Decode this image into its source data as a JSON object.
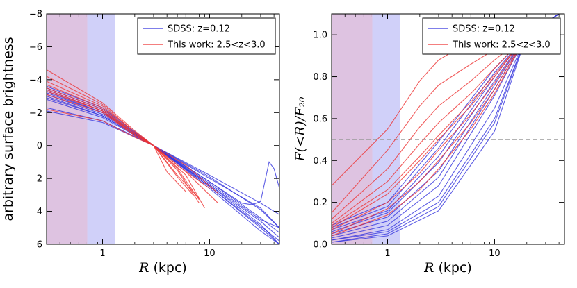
{
  "colors": {
    "sdss": "#3333dd",
    "this_work": "#ee3333",
    "red_band": "#d8b8dc",
    "blue_band": "#c8c8f8",
    "ref_line": "#9a9a9a"
  },
  "chart_data": [
    {
      "type": "line",
      "id": "left",
      "title": "",
      "xlabel_var": "R",
      "xlabel_unit": " (kpc)",
      "ylabel": "arbitrary surface brightness",
      "xscale": "log",
      "xlim": [
        0.3,
        45
      ],
      "ylim": [
        6,
        -8
      ],
      "x_ticks": [
        1,
        10
      ],
      "x_tick_labels": [
        "1",
        "10"
      ],
      "y_ticks": [
        -8,
        -6,
        -4,
        -2,
        0,
        2,
        4,
        6
      ],
      "y_tick_labels": [
        "−8",
        "−6",
        "−4",
        "−2",
        "0",
        "2",
        "4",
        "6"
      ],
      "shaded_regions": [
        {
          "name": "red-band",
          "x": [
            0.3,
            0.72
          ],
          "color": "red_band"
        },
        {
          "name": "blue-band",
          "x": [
            0.72,
            1.3
          ],
          "color": "blue_band"
        }
      ],
      "legend": {
        "position": "top-right",
        "entries": [
          {
            "label": "SDSS: z=0.12",
            "color": "sdss"
          },
          {
            "label": "This work: 2.5<z<3.0",
            "color": "this_work"
          }
        ]
      },
      "series": [
        {
          "name": "SDSS",
          "color": "sdss",
          "x": [
            0.3,
            1,
            3,
            10,
            30,
            45
          ],
          "y": [
            -3.6,
            -2.3,
            0,
            2.4,
            4.8,
            6.0
          ]
        },
        {
          "name": "SDSS",
          "color": "sdss",
          "x": [
            0.3,
            1,
            3,
            10,
            30,
            45
          ],
          "y": [
            -3.4,
            -2.1,
            0,
            2.5,
            5.0,
            6.0
          ]
        },
        {
          "name": "SDSS",
          "color": "sdss",
          "x": [
            0.3,
            1,
            3,
            10,
            30,
            45
          ],
          "y": [
            -3.3,
            -2.0,
            0,
            2.6,
            5.2,
            6.0
          ]
        },
        {
          "name": "SDSS",
          "color": "sdss",
          "x": [
            0.3,
            1,
            3,
            10,
            30,
            45
          ],
          "y": [
            -3.2,
            -2.0,
            0,
            2.4,
            4.6,
            5.6
          ]
        },
        {
          "name": "SDSS",
          "color": "sdss",
          "x": [
            0.3,
            1,
            3,
            10,
            30,
            45
          ],
          "y": [
            -3.1,
            -1.9,
            0,
            2.5,
            4.9,
            5.8
          ]
        },
        {
          "name": "SDSS",
          "color": "sdss",
          "x": [
            0.3,
            1,
            3,
            10,
            30,
            45
          ],
          "y": [
            -3.0,
            -1.8,
            0,
            2.2,
            4.4,
            5.3
          ]
        },
        {
          "name": "SDSS",
          "color": "sdss",
          "x": [
            0.3,
            1,
            3,
            10,
            30,
            45
          ],
          "y": [
            -2.9,
            -1.8,
            0,
            2.3,
            4.5,
            5.0
          ]
        },
        {
          "name": "SDSS",
          "color": "sdss",
          "x": [
            0.3,
            1,
            3,
            10,
            30,
            45
          ],
          "y": [
            -2.8,
            -1.7,
            0,
            2.0,
            3.8,
            5.0
          ]
        },
        {
          "name": "SDSS",
          "color": "sdss",
          "x": [
            0.3,
            1,
            3,
            10,
            20,
            25,
            30,
            36,
            40,
            45
          ],
          "y": [
            -3.5,
            -2.2,
            0,
            2.2,
            3.5,
            3.6,
            3.4,
            1.0,
            1.4,
            2.6
          ]
        },
        {
          "name": "SDSS",
          "color": "sdss",
          "x": [
            0.3,
            1,
            3,
            10,
            30,
            45
          ],
          "y": [
            -2.3,
            -1.5,
            0,
            1.9,
            3.9,
            5.0
          ]
        },
        {
          "name": "SDSS",
          "color": "sdss",
          "x": [
            0.3,
            1,
            3,
            10,
            30,
            45
          ],
          "y": [
            -2.1,
            -1.4,
            0,
            1.8,
            3.5,
            4.2
          ]
        },
        {
          "name": "This work",
          "color": "this_work",
          "x": [
            0.3,
            1,
            2,
            3,
            5,
            8
          ],
          "y": [
            -4.6,
            -2.6,
            -0.9,
            0,
            1.8,
            3.2
          ]
        },
        {
          "name": "This work",
          "color": "this_work",
          "x": [
            0.3,
            1,
            2,
            3,
            5,
            8
          ],
          "y": [
            -4.2,
            -2.5,
            -0.8,
            0,
            1.5,
            3.5
          ]
        },
        {
          "name": "This work",
          "color": "this_work",
          "x": [
            0.3,
            1,
            2,
            3,
            6,
            9
          ],
          "y": [
            -3.9,
            -2.4,
            -0.8,
            0,
            1.8,
            3.8
          ]
        },
        {
          "name": "This work",
          "color": "this_work",
          "x": [
            0.3,
            1,
            2,
            3,
            6,
            12
          ],
          "y": [
            -3.7,
            -2.3,
            -0.7,
            0,
            1.6,
            3.5
          ]
        },
        {
          "name": "This work",
          "color": "this_work",
          "x": [
            0.3,
            1,
            2,
            3,
            5,
            7
          ],
          "y": [
            -3.5,
            -2.2,
            -0.7,
            0,
            1.9,
            3.0
          ]
        },
        {
          "name": "This work",
          "color": "this_work",
          "x": [
            0.3,
            1,
            2,
            3,
            5,
            10
          ],
          "y": [
            -3.4,
            -2.1,
            -0.7,
            0,
            1.2,
            2.6
          ]
        },
        {
          "name": "This work",
          "color": "this_work",
          "x": [
            0.3,
            1,
            2,
            3,
            4,
            6
          ],
          "y": [
            -3.3,
            -2.1,
            -0.6,
            0,
            1.6,
            2.8
          ]
        },
        {
          "name": "This work",
          "color": "this_work",
          "x": [
            0.3,
            1,
            2,
            3,
            5,
            8
          ],
          "y": [
            -3.1,
            -2.0,
            -0.6,
            0,
            1.4,
            3.3
          ]
        },
        {
          "name": "This work",
          "color": "this_work",
          "x": [
            0.3,
            1,
            2,
            3,
            6,
            12
          ],
          "y": [
            -2.2,
            -1.5,
            -0.5,
            0,
            1.2,
            2.9
          ]
        }
      ]
    },
    {
      "type": "line",
      "id": "right",
      "title": "",
      "xlabel_var": "R",
      "xlabel_unit": " (kpc)",
      "ylabel": "F(<R)/F₂₀",
      "xscale": "log",
      "xlim": [
        0.3,
        45
      ],
      "ylim": [
        0,
        1.1
      ],
      "x_ticks": [
        1,
        10
      ],
      "x_tick_labels": [
        "1",
        "10"
      ],
      "y_ticks": [
        0.0,
        0.2,
        0.4,
        0.6,
        0.8,
        1.0
      ],
      "y_tick_labels": [
        "0.0",
        "0.2",
        "0.4",
        "0.6",
        "0.8",
        "1.0"
      ],
      "reference_line": {
        "y": 0.5,
        "style": "dashed"
      },
      "shaded_regions": [
        {
          "name": "red-band",
          "x": [
            0.3,
            0.72
          ],
          "color": "red_band"
        },
        {
          "name": "blue-band",
          "x": [
            0.72,
            1.3
          ],
          "color": "blue_band"
        }
      ],
      "legend": {
        "position": "top-right",
        "entries": [
          {
            "label": "SDSS: z=0.12",
            "color": "sdss"
          },
          {
            "label": "This work: 2.5<z<3.0",
            "color": "this_work"
          }
        ]
      },
      "series": [
        {
          "name": "SDSS",
          "color": "sdss",
          "x": [
            0.3,
            1,
            3,
            10,
            20,
            40
          ],
          "y": [
            0.03,
            0.09,
            0.28,
            0.71,
            1.0,
            1.1
          ]
        },
        {
          "name": "SDSS",
          "color": "sdss",
          "x": [
            0.3,
            1,
            3,
            10,
            20,
            40
          ],
          "y": [
            0.04,
            0.11,
            0.32,
            0.74,
            1.0,
            1.1
          ]
        },
        {
          "name": "SDSS",
          "color": "sdss",
          "x": [
            0.3,
            1,
            3,
            10,
            20,
            40
          ],
          "y": [
            0.05,
            0.13,
            0.35,
            0.76,
            1.0,
            1.1
          ]
        },
        {
          "name": "SDSS",
          "color": "sdss",
          "x": [
            0.3,
            1,
            3,
            10,
            20,
            40
          ],
          "y": [
            0.06,
            0.15,
            0.39,
            0.78,
            1.0,
            1.1
          ]
        },
        {
          "name": "SDSS",
          "color": "sdss",
          "x": [
            0.3,
            1,
            3,
            10,
            20,
            40
          ],
          "y": [
            0.07,
            0.16,
            0.42,
            0.8,
            1.0,
            1.1
          ]
        },
        {
          "name": "SDSS",
          "color": "sdss",
          "x": [
            0.3,
            1,
            3,
            10,
            20,
            40
          ],
          "y": [
            0.08,
            0.18,
            0.46,
            0.82,
            1.0,
            1.1
          ]
        },
        {
          "name": "SDSS",
          "color": "sdss",
          "x": [
            0.3,
            1,
            3,
            10,
            20,
            40
          ],
          "y": [
            0.09,
            0.2,
            0.49,
            0.84,
            1.0,
            1.1
          ]
        },
        {
          "name": "SDSS",
          "color": "sdss",
          "x": [
            0.3,
            1,
            3,
            10,
            20,
            40
          ],
          "y": [
            0.02,
            0.06,
            0.2,
            0.6,
            1.0,
            1.1
          ]
        },
        {
          "name": "SDSS",
          "color": "sdss",
          "x": [
            0.3,
            1,
            3,
            10,
            20,
            40
          ],
          "y": [
            0.02,
            0.07,
            0.23,
            0.65,
            1.0,
            1.1
          ]
        },
        {
          "name": "SDSS",
          "color": "sdss",
          "x": [
            0.3,
            1,
            3,
            10,
            20,
            40
          ],
          "y": [
            0.01,
            0.04,
            0.16,
            0.54,
            1.0,
            1.1
          ]
        },
        {
          "name": "SDSS",
          "color": "sdss",
          "x": [
            0.3,
            1,
            3,
            10,
            20,
            40
          ],
          "y": [
            0.01,
            0.05,
            0.18,
            0.58,
            1.0,
            1.1
          ]
        },
        {
          "name": "This work",
          "color": "this_work",
          "x": [
            0.3,
            1,
            2,
            3,
            6,
            10,
            20,
            28
          ],
          "y": [
            0.28,
            0.55,
            0.78,
            0.88,
            0.97,
            0.99,
            1.0,
            1.02
          ]
        },
        {
          "name": "This work",
          "color": "this_work",
          "x": [
            0.3,
            1,
            2,
            3,
            6,
            10,
            20,
            28
          ],
          "y": [
            0.15,
            0.45,
            0.66,
            0.76,
            0.86,
            0.93,
            1.0,
            1.03
          ]
        },
        {
          "name": "This work",
          "color": "this_work",
          "x": [
            0.3,
            1,
            2,
            3,
            6,
            10,
            20,
            28
          ],
          "y": [
            0.12,
            0.36,
            0.56,
            0.66,
            0.78,
            0.88,
            1.0,
            1.02
          ]
        },
        {
          "name": "This work",
          "color": "this_work",
          "x": [
            0.3,
            1,
            2,
            3,
            6,
            10,
            20,
            28
          ],
          "y": [
            0.1,
            0.3,
            0.48,
            0.58,
            0.72,
            0.84,
            1.0,
            1.01
          ]
        },
        {
          "name": "This work",
          "color": "this_work",
          "x": [
            0.3,
            1,
            2,
            3,
            6,
            10,
            20,
            28
          ],
          "y": [
            0.09,
            0.26,
            0.42,
            0.52,
            0.68,
            0.81,
            1.0,
            0.99
          ]
        },
        {
          "name": "This work",
          "color": "this_work",
          "x": [
            0.3,
            1,
            2,
            3,
            6,
            10,
            20,
            28
          ],
          "y": [
            0.08,
            0.24,
            0.4,
            0.5,
            0.66,
            0.8,
            1.0,
            1.02
          ]
        },
        {
          "name": "This work",
          "color": "this_work",
          "x": [
            0.3,
            1,
            2,
            3,
            6,
            10,
            20,
            28
          ],
          "y": [
            0.07,
            0.2,
            0.34,
            0.45,
            0.62,
            0.77,
            1.0,
            0.97
          ]
        },
        {
          "name": "This work",
          "color": "this_work",
          "x": [
            0.3,
            1,
            2,
            3,
            6,
            10,
            20,
            28
          ],
          "y": [
            0.05,
            0.17,
            0.3,
            0.4,
            0.58,
            0.74,
            1.0,
            1.01
          ]
        },
        {
          "name": "This work",
          "color": "this_work",
          "x": [
            0.3,
            1,
            2,
            3,
            6,
            10,
            20,
            28
          ],
          "y": [
            0.04,
            0.14,
            0.26,
            0.36,
            0.55,
            0.72,
            1.0,
            1.0
          ]
        }
      ]
    }
  ]
}
